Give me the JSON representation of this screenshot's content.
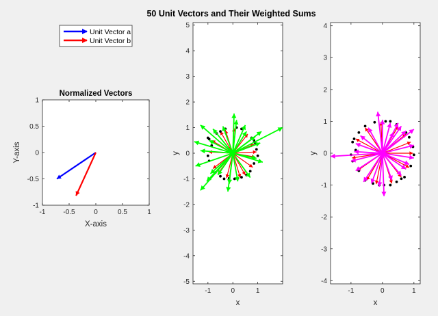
{
  "figure": {
    "title": "50 Unit Vectors and Their Weighted Sums",
    "background": "#f0f0f0",
    "axes_background": "#ffffff"
  },
  "chart_data": [
    {
      "id": "normalized",
      "type": "vector",
      "title": "Normalized Vectors",
      "xlabel": "X-axis",
      "ylabel": "Y-axis",
      "xlim": [
        -1,
        1
      ],
      "ylim": [
        -1,
        1
      ],
      "xticks": [
        "-1",
        "-0.5",
        "0",
        "0.5",
        "1"
      ],
      "xtick_values": [
        -1,
        -0.5,
        0,
        0.5,
        1
      ],
      "yticks": [
        "-1",
        "-0.5",
        "0",
        "0.5",
        "1"
      ],
      "ytick_values": [
        -1,
        -0.5,
        0,
        0.5,
        1
      ],
      "grid": false,
      "legend_position": "top-left (outside axes, above plot)",
      "legend": [
        {
          "name": "Unit Vector a",
          "color": "#0000ff"
        },
        {
          "name": "Unit Vector b",
          "color": "#ff0000"
        }
      ],
      "vectors": [
        {
          "name": "Unit Vector a",
          "x0": 0,
          "y0": 0,
          "dx": -0.73,
          "dy": -0.5,
          "color": "#0000ff"
        },
        {
          "name": "Unit Vector b",
          "x0": 0,
          "y0": 0,
          "dx": -0.37,
          "dy": -0.82,
          "color": "#ff0000"
        }
      ]
    },
    {
      "id": "sums-green",
      "type": "vector",
      "title": "",
      "xlabel": "x",
      "ylabel": "y",
      "xlim": [
        -1.6,
        2.0
      ],
      "ylim": [
        -5.1,
        5.1
      ],
      "xticks": [
        "-1",
        "0",
        "1"
      ],
      "xtick_values": [
        -1,
        0,
        1
      ],
      "yticks": [
        "-5",
        "-4",
        "-3",
        "-2",
        "-1",
        "0",
        "1",
        "2",
        "3",
        "4",
        "5"
      ],
      "ytick_values": [
        -5,
        -4,
        -3,
        -2,
        -1,
        0,
        1,
        2,
        3,
        4,
        5
      ],
      "grid": false,
      "dot_color": "#000000",
      "short_vector_color": "#ff0000",
      "long_vector_color": "#00ff00",
      "dots": [
        [
          0.07,
          -1.0
        ],
        [
          -0.35,
          -1.0
        ],
        [
          0.2,
          -0.98
        ],
        [
          -0.5,
          -0.9
        ],
        [
          0.35,
          -0.94
        ],
        [
          -0.7,
          -0.75
        ],
        [
          0.55,
          -0.85
        ],
        [
          -0.95,
          -0.3
        ],
        [
          -1.0,
          -0.1
        ],
        [
          -0.95,
          0.55
        ],
        [
          -1.0,
          0.6
        ],
        [
          -0.65,
          0.77
        ],
        [
          -0.3,
          0.95
        ],
        [
          0.15,
          1.0
        ],
        [
          0.35,
          0.95
        ],
        [
          0.75,
          0.6
        ],
        [
          0.85,
          0.5
        ],
        [
          0.95,
          0.15
        ],
        [
          1.0,
          -0.1
        ],
        [
          0.85,
          -0.4
        ],
        [
          0.7,
          -0.7
        ],
        [
          -0.85,
          0.3
        ],
        [
          -0.15,
          -0.98
        ],
        [
          0.9,
          0.4
        ],
        [
          -0.5,
          0.85
        ]
      ],
      "short_vectors": [
        [
          0.85,
          0.35
        ],
        [
          0.95,
          0.05
        ],
        [
          0.9,
          -0.15
        ],
        [
          0.8,
          -0.55
        ],
        [
          0.5,
          -0.85
        ],
        [
          0.3,
          -0.95
        ],
        [
          -0.25,
          -0.97
        ],
        [
          -0.6,
          -0.8
        ],
        [
          -0.8,
          -0.6
        ],
        [
          -0.97,
          0.05
        ],
        [
          -0.85,
          0.5
        ],
        [
          -0.5,
          0.85
        ],
        [
          0.05,
          0.98
        ],
        [
          0.6,
          0.75
        ],
        [
          -0.3,
          0.9
        ]
      ],
      "long_vectors": [
        [
          2.0,
          1.0
        ],
        [
          1.1,
          0.4
        ],
        [
          1.2,
          -0.35
        ],
        [
          0.95,
          -0.2
        ],
        [
          0.7,
          -0.95
        ],
        [
          0.2,
          -1.1
        ],
        [
          -0.15,
          -1.2
        ],
        [
          -0.6,
          -0.85
        ],
        [
          -1.05,
          -1.1
        ],
        [
          -1.3,
          -1.45
        ],
        [
          -1.3,
          0.1
        ],
        [
          -1.5,
          -0.5
        ],
        [
          -1.55,
          0.45
        ],
        [
          -0.9,
          -0.8
        ],
        [
          -0.95,
          0.5
        ],
        [
          -1.3,
          1.1
        ],
        [
          -0.8,
          0.95
        ],
        [
          -0.4,
          1.05
        ],
        [
          0.05,
          1.55
        ],
        [
          0.15,
          1.3
        ],
        [
          0.5,
          1.1
        ],
        [
          0.55,
          0.85
        ],
        [
          0.9,
          0.65
        ],
        [
          1.15,
          0.85
        ],
        [
          -0.2,
          -1.5
        ]
      ]
    },
    {
      "id": "sums-magenta",
      "type": "vector",
      "title": "",
      "xlabel": "x",
      "ylabel": "y",
      "xlim": [
        -1.65,
        1.2
      ],
      "ylim": [
        -4.1,
        4.1
      ],
      "xticks": [
        "-1",
        "0",
        "1"
      ],
      "xtick_values": [
        -1,
        0,
        1
      ],
      "yticks": [
        "-4",
        "-3",
        "-2",
        "-1",
        "0",
        "1",
        "2",
        "3",
        "4"
      ],
      "ytick_values": [
        -4,
        -3,
        -2,
        -1,
        0,
        1,
        2,
        3,
        4
      ],
      "grid": false,
      "dot_color": "#000000",
      "short_vector_color": "#ff0000",
      "long_vector_color": "#ff00ff",
      "dots": [
        [
          0.05,
          -1.0
        ],
        [
          -0.3,
          -0.95
        ],
        [
          0.25,
          -1.0
        ],
        [
          -0.55,
          -0.85
        ],
        [
          0.45,
          -0.9
        ],
        [
          -0.75,
          -0.55
        ],
        [
          0.7,
          -0.75
        ],
        [
          -0.95,
          -0.25
        ],
        [
          -1.0,
          -0.05
        ],
        [
          -0.95,
          0.35
        ],
        [
          -0.9,
          0.45
        ],
        [
          -0.75,
          0.65
        ],
        [
          -0.25,
          0.97
        ],
        [
          0.1,
          1.0
        ],
        [
          0.25,
          1.0
        ],
        [
          0.75,
          0.65
        ],
        [
          0.85,
          0.5
        ],
        [
          0.97,
          0.2
        ],
        [
          1.0,
          -0.05
        ],
        [
          0.9,
          -0.4
        ],
        [
          0.6,
          -0.8
        ],
        [
          -0.85,
          0.1
        ],
        [
          -0.1,
          -1.0
        ],
        [
          0.45,
          0.9
        ],
        [
          -0.55,
          0.85
        ]
      ],
      "short_vectors": [
        [
          0.9,
          0.35
        ],
        [
          0.97,
          0.0
        ],
        [
          0.85,
          -0.45
        ],
        [
          0.6,
          -0.75
        ],
        [
          0.3,
          -0.95
        ],
        [
          -0.2,
          -0.97
        ],
        [
          -0.5,
          -0.85
        ],
        [
          -0.8,
          -0.55
        ],
        [
          -0.97,
          -0.15
        ],
        [
          -0.85,
          0.45
        ],
        [
          -0.55,
          0.8
        ],
        [
          -0.05,
          0.98
        ],
        [
          0.5,
          0.85
        ],
        [
          0.75,
          0.6
        ]
      ],
      "long_vectors": [
        [
          1.0,
          0.75
        ],
        [
          0.75,
          0.7
        ],
        [
          1.0,
          0.25
        ],
        [
          1.0,
          -0.15
        ],
        [
          0.85,
          -0.35
        ],
        [
          0.75,
          -0.5
        ],
        [
          0.6,
          -0.7
        ],
        [
          0.3,
          -0.85
        ],
        [
          0.05,
          -1.35
        ],
        [
          -0.1,
          -1.05
        ],
        [
          -0.35,
          -0.95
        ],
        [
          -0.6,
          -0.9
        ],
        [
          -0.85,
          -0.55
        ],
        [
          -1.0,
          -0.25
        ],
        [
          -1.65,
          -0.1
        ],
        [
          -0.9,
          0.05
        ],
        [
          -0.85,
          0.3
        ],
        [
          -0.7,
          0.55
        ],
        [
          -0.45,
          0.8
        ],
        [
          -0.15,
          1.3
        ],
        [
          0.0,
          1.05
        ],
        [
          0.25,
          0.95
        ],
        [
          0.5,
          0.95
        ],
        [
          0.6,
          0.85
        ],
        [
          0.35,
          0.65
        ]
      ]
    }
  ]
}
